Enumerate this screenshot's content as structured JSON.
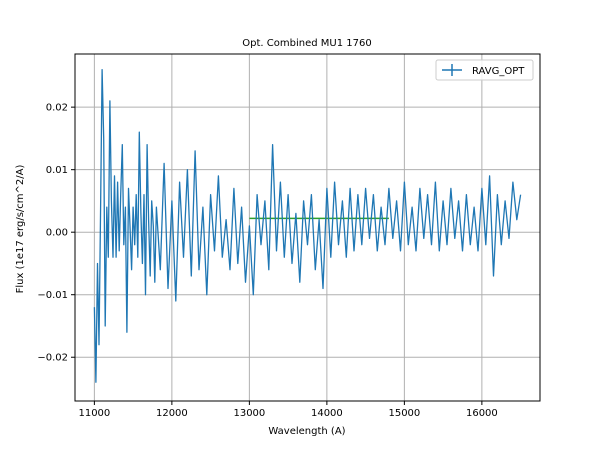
{
  "chart_data": {
    "type": "line",
    "title": "Opt. Combined MU1 1760",
    "xlabel": "Wavelength (A)",
    "ylabel": "Flux (1e17 erg/s/cm^2/A)",
    "xlim": [
      10750,
      16750
    ],
    "ylim": [
      -0.027,
      0.0285
    ],
    "xticks": [
      11000,
      12000,
      13000,
      14000,
      15000,
      16000
    ],
    "yticks": [
      -0.02,
      -0.01,
      0.0,
      0.01,
      0.02
    ],
    "xtick_labels": [
      "11000",
      "12000",
      "13000",
      "14000",
      "15000",
      "16000"
    ],
    "ytick_labels": [
      "−0.02",
      "−0.01",
      "0.00",
      "0.01",
      "0.02"
    ],
    "grid": true,
    "legend_position": "top-right",
    "colors": {
      "series": "#1f77b4",
      "flat_segment": "#2ca02c",
      "grid": "#b0b0b0"
    },
    "series": [
      {
        "name": "RAVG_OPT",
        "x": [
          11000,
          11020,
          11040,
          11060,
          11080,
          11100,
          11120,
          11140,
          11160,
          11180,
          11200,
          11220,
          11240,
          11260,
          11280,
          11300,
          11320,
          11340,
          11360,
          11380,
          11400,
          11420,
          11440,
          11460,
          11480,
          11500,
          11520,
          11540,
          11560,
          11580,
          11600,
          11620,
          11640,
          11660,
          11680,
          11700,
          11720,
          11740,
          11760,
          11780,
          11800,
          11850,
          11900,
          11950,
          12000,
          12050,
          12100,
          12150,
          12200,
          12250,
          12300,
          12350,
          12400,
          12450,
          12500,
          12550,
          12600,
          12650,
          12700,
          12750,
          12800,
          12850,
          12900,
          12950,
          13000,
          13050,
          13100,
          13150,
          13200,
          13250,
          13300,
          13350,
          13400,
          13450,
          13500,
          13550,
          13600,
          13650,
          13700,
          13750,
          13800,
          13850,
          13900,
          13950,
          14000,
          14050,
          14100,
          14150,
          14200,
          14250,
          14300,
          14350,
          14400,
          14450,
          14500,
          14550,
          14600,
          14650,
          14700,
          14750,
          14800,
          14850,
          14900,
          14950,
          15000,
          15050,
          15100,
          15150,
          15200,
          15250,
          15300,
          15350,
          15400,
          15450,
          15500,
          15550,
          15600,
          15650,
          15700,
          15750,
          15800,
          15850,
          15900,
          15950,
          16000,
          16050,
          16100,
          16150,
          16200,
          16250,
          16300,
          16350,
          16400,
          16450,
          16500
        ],
        "y": [
          -0.012,
          -0.024,
          -0.005,
          -0.018,
          0.004,
          0.026,
          0.015,
          -0.015,
          0.004,
          -0.004,
          0.021,
          0.005,
          -0.004,
          0.009,
          -0.004,
          0.008,
          -0.003,
          0.006,
          0.014,
          -0.002,
          0.004,
          -0.016,
          0.007,
          0.001,
          -0.006,
          0.004,
          -0.002,
          0.006,
          -0.004,
          0.016,
          0.003,
          -0.005,
          0.006,
          -0.01,
          0.014,
          0.002,
          -0.007,
          0.005,
          0.001,
          -0.008,
          0.004,
          -0.006,
          0.011,
          -0.009,
          0.005,
          -0.011,
          0.008,
          -0.004,
          0.01,
          -0.007,
          0.013,
          -0.006,
          0.004,
          -0.01,
          0.006,
          -0.003,
          0.009,
          -0.004,
          0.002,
          -0.006,
          0.007,
          -0.005,
          0.004,
          -0.008,
          0.001,
          -0.01,
          0.006,
          -0.002,
          0.005,
          -0.006,
          0.014,
          -0.003,
          0.008,
          -0.004,
          0.006,
          -0.005,
          0.003,
          -0.008,
          0.005,
          -0.002,
          0.006,
          -0.006,
          0.002,
          -0.009,
          0.007,
          -0.004,
          0.008,
          -0.002,
          0.005,
          -0.004,
          0.007,
          -0.003,
          0.006,
          -0.002,
          0.007,
          -0.001,
          0.006,
          -0.003,
          0.004,
          -0.002,
          0.007,
          -0.001,
          0.005,
          -0.003,
          0.008,
          -0.002,
          0.004,
          -0.003,
          0.007,
          -0.001,
          0.006,
          -0.002,
          0.008,
          -0.003,
          0.005,
          -0.002,
          0.007,
          -0.001,
          0.005,
          -0.003,
          0.006,
          -0.002,
          0.004,
          -0.003,
          0.007,
          -0.002,
          0.009,
          -0.007,
          0.006,
          -0.002,
          0.005,
          -0.001,
          0.008,
          0.002,
          0.006
        ]
      }
    ],
    "flat_segment": {
      "x": [
        13000,
        14800
      ],
      "y": 0.0022
    }
  }
}
